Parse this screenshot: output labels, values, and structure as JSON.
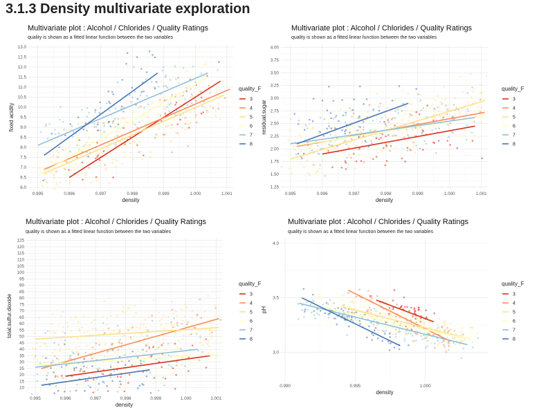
{
  "page": {
    "title": "3.1.3 Density multivariate exploration"
  },
  "colors": {
    "3": "#d7301f",
    "4": "#fc8d59",
    "5": "#fee08b",
    "6": "#ffffbf",
    "7": "#91bfdb",
    "8": "#4575b4"
  },
  "chart_data": [
    {
      "type": "scatter",
      "title": "Multivariate plot : Alcohol / Chlorides / Quality Ratings",
      "subtitle": "quality is shown as a fitted linear function between the two variables",
      "xlabel": "density",
      "ylabel": "fixed acidity",
      "xlim": [
        0.9947,
        1.0012
      ],
      "ylim": [
        5.9,
        13.1
      ],
      "xticks": [
        "0.995",
        "0.996",
        "0.997",
        "0.998",
        "0.999",
        "1.000",
        "1.001"
      ],
      "yticks": [
        "6.0",
        "6.5",
        "7.0",
        "7.5",
        "8.0",
        "8.5",
        "9.0",
        "9.5",
        "10.0",
        "10.5",
        "11.0",
        "11.5",
        "12.0",
        "12.5",
        "13.0"
      ],
      "legend": {
        "title": "quality_F",
        "entries": [
          "3",
          "4",
          "5",
          "6",
          "7",
          "8"
        ],
        "placement": "right"
      },
      "grid": true,
      "fit_lines": [
        {
          "quality": "3",
          "x": [
            0.996,
            1.0008
          ],
          "y": [
            6.5,
            11.3
          ]
        },
        {
          "quality": "4",
          "x": [
            0.9952,
            1.0011
          ],
          "y": [
            6.9,
            10.9
          ]
        },
        {
          "quality": "5",
          "x": [
            0.9952,
            1.0009
          ],
          "y": [
            6.7,
            10.6
          ]
        },
        {
          "quality": "6",
          "x": [
            0.995,
            1.0004
          ],
          "y": [
            6.6,
            11.5
          ]
        },
        {
          "quality": "7",
          "x": [
            0.995,
            1.0004
          ],
          "y": [
            8.1,
            11.7
          ]
        },
        {
          "quality": "8",
          "x": [
            0.9952,
            0.9988
          ],
          "y": [
            7.6,
            11.7
          ]
        }
      ]
    },
    {
      "type": "scatter",
      "title": "Multivariate plot : Alcohol / Chlorides / Quality Ratings",
      "subtitle": "quality is shown as a fitted linear function between the two variables",
      "xlabel": "density",
      "ylabel": "residual.sugar",
      "xlim": [
        0.9947,
        1.0012
      ],
      "ylim": [
        1.2,
        4.05
      ],
      "xticks": [
        "0.995",
        "0.996",
        "0.997",
        "0.998",
        "0.999",
        "1.000",
        "1.001"
      ],
      "yticks": [
        "1.25",
        "1.50",
        "1.75",
        "2.00",
        "2.25",
        "2.50",
        "2.75",
        "3.00",
        "3.25",
        "3.50",
        "3.75",
        "4.00"
      ],
      "legend": {
        "title": "quality_F",
        "entries": [
          "3",
          "4",
          "5",
          "6",
          "7",
          "8"
        ],
        "placement": "right"
      },
      "grid": true,
      "fit_lines": [
        {
          "quality": "3",
          "x": [
            0.996,
            1.0008
          ],
          "y": [
            1.9,
            2.45
          ]
        },
        {
          "quality": "4",
          "x": [
            0.9952,
            1.0011
          ],
          "y": [
            2.05,
            2.72
          ]
        },
        {
          "quality": "5",
          "x": [
            0.995,
            1.0011
          ],
          "y": [
            1.8,
            2.95
          ]
        },
        {
          "quality": "6",
          "x": [
            0.995,
            1.0011
          ],
          "y": [
            2.05,
            2.65
          ]
        },
        {
          "quality": "7",
          "x": [
            0.995,
            1.0008
          ],
          "y": [
            2.1,
            2.62
          ]
        },
        {
          "quality": "8",
          "x": [
            0.9952,
            0.9987
          ],
          "y": [
            2.1,
            2.9
          ]
        }
      ]
    },
    {
      "type": "scatter",
      "title": "Multivariate plot : Alcohol / Chlorides / Quality Ratings",
      "subtitle": "quality is shown as a fitted linear function between the two variables",
      "xlabel": "density",
      "ylabel": "total.sulfur.dioxide",
      "xlim": [
        0.9947,
        1.0012
      ],
      "ylim": [
        5,
        127
      ],
      "xticks": [
        "0.995",
        "0.996",
        "0.997",
        "0.998",
        "0.999",
        "1.000",
        "1.001"
      ],
      "yticks": [
        "10",
        "15",
        "20",
        "25",
        "30",
        "35",
        "40",
        "45",
        "50",
        "55",
        "60",
        "65",
        "70",
        "75",
        "80",
        "85",
        "90",
        "95",
        "100",
        "105",
        "110",
        "115",
        "120",
        "125"
      ],
      "legend": {
        "title": "quality_F",
        "entries": [
          "3",
          "4",
          "5",
          "6",
          "7",
          "8"
        ],
        "placement": "right"
      },
      "grid": true,
      "fit_lines": [
        {
          "quality": "3",
          "x": [
            0.996,
            1.0008
          ],
          "y": [
            19,
            35
          ]
        },
        {
          "quality": "4",
          "x": [
            0.9952,
            1.0011
          ],
          "y": [
            25,
            64
          ]
        },
        {
          "quality": "5",
          "x": [
            0.995,
            1.0011
          ],
          "y": [
            48,
            57
          ]
        },
        {
          "quality": "6",
          "x": [
            0.995,
            1.0011
          ],
          "y": [
            28,
            36
          ]
        },
        {
          "quality": "7",
          "x": [
            0.995,
            1.0004
          ],
          "y": [
            26,
            40
          ]
        },
        {
          "quality": "8",
          "x": [
            0.9952,
            0.9988
          ],
          "y": [
            12,
            24
          ]
        }
      ]
    },
    {
      "type": "scatter",
      "title": "Multivariate plot : Alcohol / Chlorides / Quality Ratings",
      "subtitle": "quality is shown as a fitted linear function between the two variables",
      "xlabel": "density",
      "ylabel": "pH",
      "xlim": [
        0.9897,
        1.0045
      ],
      "ylim": [
        2.73,
        4.05
      ],
      "xticks": [
        "0.990",
        "0.995",
        "1.000"
      ],
      "yticks": [
        "3.0",
        "3.5",
        "4.0"
      ],
      "legend": {
        "title": "quality_F",
        "entries": [
          "3",
          "4",
          "5",
          "6",
          "7",
          "8"
        ],
        "placement": "right"
      },
      "grid": true,
      "fit_lines": [
        {
          "quality": "3",
          "x": [
            0.9965,
            1.0006
          ],
          "y": [
            3.48,
            3.28
          ]
        },
        {
          "quality": "4",
          "x": [
            0.9945,
            1.0018
          ],
          "y": [
            3.57,
            3.1
          ]
        },
        {
          "quality": "5",
          "x": [
            0.994,
            1.0032
          ],
          "y": [
            3.42,
            3.12
          ]
        },
        {
          "quality": "6",
          "x": [
            0.992,
            1.0032
          ],
          "y": [
            3.43,
            3.12
          ]
        },
        {
          "quality": "7",
          "x": [
            0.991,
            1.003
          ],
          "y": [
            3.45,
            3.07
          ]
        },
        {
          "quality": "8",
          "x": [
            0.9912,
            0.9982
          ],
          "y": [
            3.5,
            3.06
          ]
        }
      ]
    }
  ]
}
